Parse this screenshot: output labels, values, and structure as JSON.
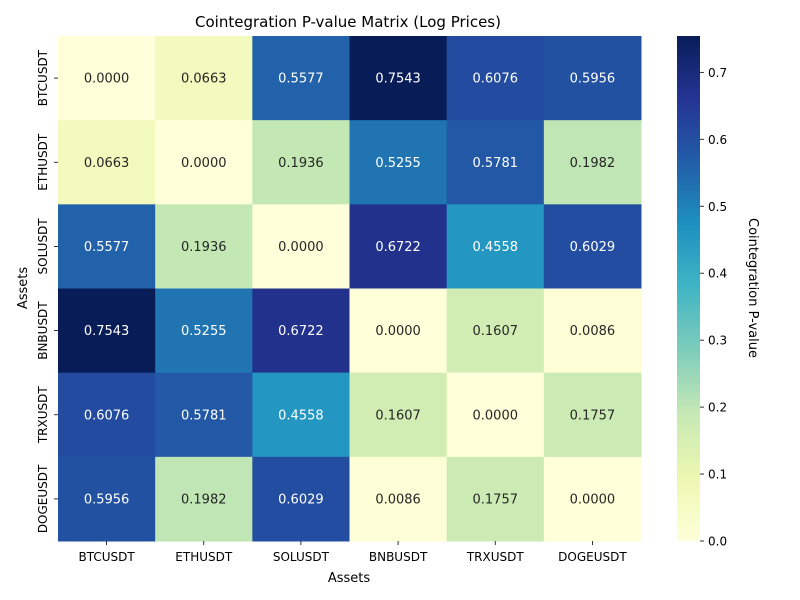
{
  "chart_data": {
    "type": "heatmap",
    "title": "Cointegration P-value Matrix (Log Prices)",
    "xlabel": "Assets",
    "ylabel": "Assets",
    "x_categories": [
      "BTCUSDT",
      "ETHUSDT",
      "SOLUSDT",
      "BNBUSDT",
      "TRXUSDT",
      "DOGEUSDT"
    ],
    "y_categories": [
      "BTCUSDT",
      "ETHUSDT",
      "SOLUSDT",
      "BNBUSDT",
      "TRXUSDT",
      "DOGEUSDT"
    ],
    "values": [
      [
        0.0,
        0.0663,
        0.5577,
        0.7543,
        0.6076,
        0.5956
      ],
      [
        0.0663,
        0.0,
        0.1936,
        0.5255,
        0.5781,
        0.1982
      ],
      [
        0.5577,
        0.1936,
        0.0,
        0.6722,
        0.4558,
        0.6029
      ],
      [
        0.7543,
        0.5255,
        0.6722,
        0.0,
        0.1607,
        0.0086
      ],
      [
        0.6076,
        0.5781,
        0.4558,
        0.1607,
        0.0,
        0.1757
      ],
      [
        0.5956,
        0.1982,
        0.6029,
        0.0086,
        0.1757,
        0.0
      ]
    ],
    "colorbar": {
      "label": "Cointegration P-value",
      "range": [
        0,
        0.7543
      ],
      "ticks": [
        "0.0",
        "0.1",
        "0.2",
        "0.3",
        "0.4",
        "0.5",
        "0.6",
        "0.7"
      ],
      "colormap": "YlGnBu",
      "stops": [
        "#ffffd9",
        "#edf8b1",
        "#c7e9b4",
        "#7fcdbb",
        "#41b6c4",
        "#1d91c0",
        "#225ea8",
        "#253494",
        "#081d58"
      ]
    }
  }
}
